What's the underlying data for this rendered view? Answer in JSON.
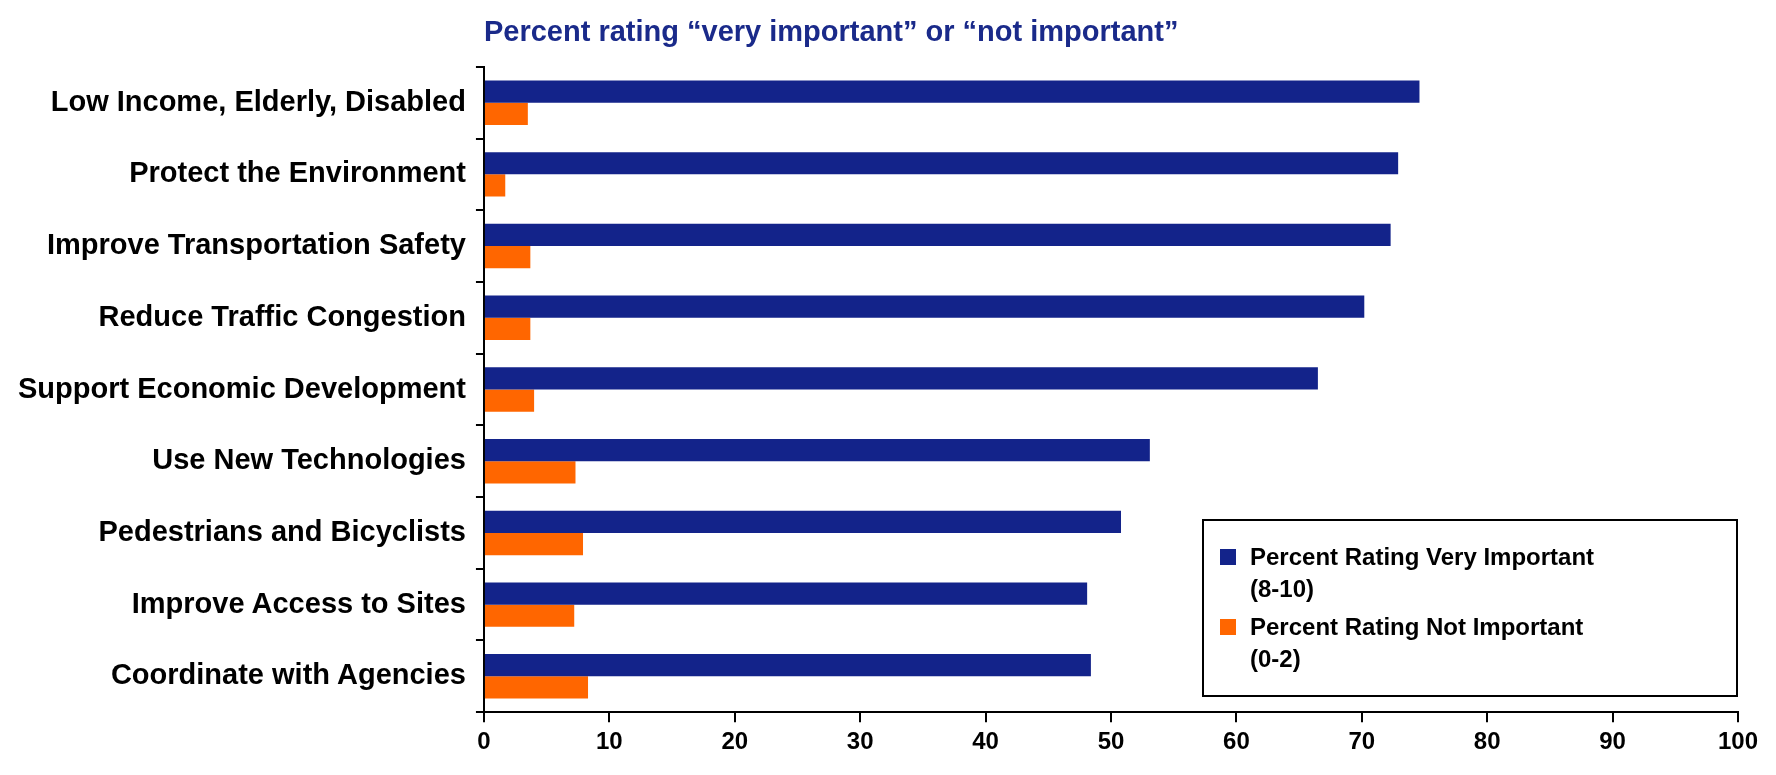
{
  "chart_data": {
    "type": "bar",
    "orientation": "horizontal",
    "title": "Percent rating “very important” or “not important”",
    "categories": [
      "Low Income, Elderly, Disabled",
      "Protect the Environment",
      "Improve Transportation Safety",
      "Reduce Traffic Congestion",
      "Support Economic Development",
      "Use New Technologies",
      "Pedestrians and Bicyclists",
      "Improve Access to Sites",
      "Coordinate with Agencies"
    ],
    "series": [
      {
        "name": "Percent Rating Very Important (8-10)",
        "color": "#13238a",
        "values": [
          74.6,
          72.9,
          72.3,
          70.2,
          66.5,
          53.1,
          50.8,
          48.1,
          48.4
        ]
      },
      {
        "name": "Percent Rating Not Important (0-2)",
        "color": "#ff6600",
        "values": [
          3.5,
          1.7,
          3.7,
          3.7,
          4.0,
          7.3,
          7.9,
          7.2,
          8.3
        ]
      }
    ],
    "xlim": [
      0,
      100
    ],
    "xticks": [
      0,
      10,
      20,
      30,
      40,
      50,
      60,
      70,
      80,
      90,
      100
    ],
    "grid": false,
    "legend": "bottom right"
  }
}
